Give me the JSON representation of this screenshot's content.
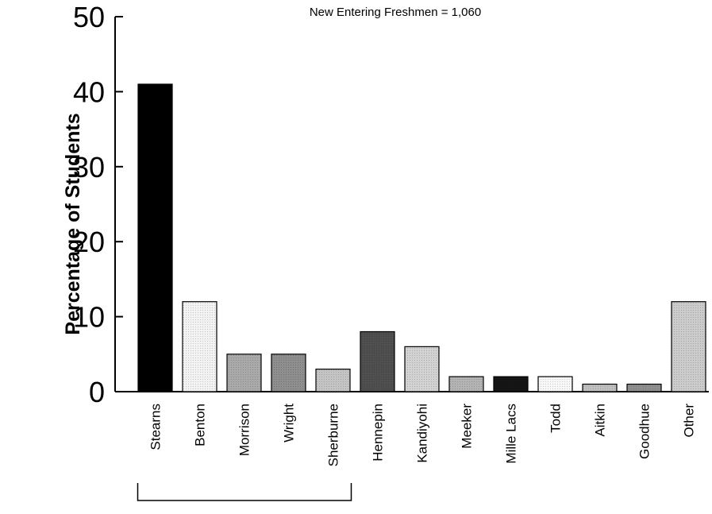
{
  "chart_data": {
    "type": "bar",
    "subtitle": "New Entering Freshmen = 1,060",
    "ylabel": "Percentage of Students",
    "xlabel": "",
    "ylim": [
      0,
      50
    ],
    "yticks": [
      0,
      10,
      20,
      30,
      40,
      50
    ],
    "categories": [
      "Stearns",
      "Benton",
      "Morrison",
      "Wright",
      "Sherburne",
      "Hennepin",
      "Kandiyohi",
      "Meeker",
      "Mille Lacs",
      "Todd",
      "Aitkin",
      "Goodhue",
      "Other"
    ],
    "values": [
      41,
      12,
      5,
      5,
      3,
      8,
      6,
      2,
      2,
      2,
      1,
      1,
      12
    ],
    "bar_colors": [
      "#000000",
      "#f2f2f2",
      "#a9a9a9",
      "#8e8e8e",
      "#c4c4c4",
      "#4f4f4f",
      "#d2d2d2",
      "#b3b3b3",
      "#151515",
      "#f7f7f7",
      "#c0c0c0",
      "#8f8f8f",
      "#cbcbcb"
    ],
    "bracket_groups": [
      {
        "from": "Stearns",
        "to": "Sherburne"
      }
    ],
    "grid": false,
    "legend": "none"
  }
}
